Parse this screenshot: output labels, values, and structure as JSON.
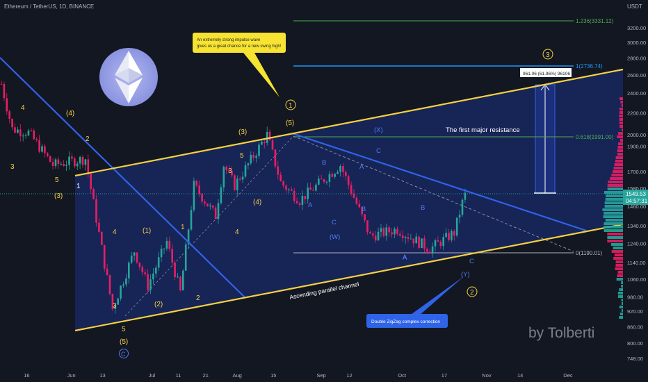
{
  "header": {
    "title": "Ethereum / TetherUS, 1D, BINANCE",
    "currency": "USDT"
  },
  "price_axis": {
    "ticks": [
      "3200.00",
      "3000.00",
      "2800.00",
      "2600.00",
      "2400.00",
      "2200.00",
      "2000.00",
      "1900.00",
      "1700.00",
      "1580.00",
      "1460.00",
      "1340.00",
      "1240.00",
      "1140.00",
      "1060.00",
      "980.00",
      "920.00",
      "860.00",
      "800.00",
      "748.00"
    ],
    "current_price": "1549.53",
    "countdown": "04:57:31"
  },
  "time_axis": {
    "labels": [
      "16",
      "Jun",
      "13",
      "Jul",
      "11",
      "21",
      "Aug",
      "15",
      "Sep",
      "12",
      "Oct",
      "17",
      "Nov",
      "14",
      "Dec"
    ]
  },
  "fib_levels": [
    {
      "label": "1.236(3331.12)",
      "color": "#4caf50"
    },
    {
      "label": "1(2736.74)",
      "color": "#2196f3"
    },
    {
      "label": "0.618(1991.00)",
      "color": "#4caf50"
    },
    {
      "label": "0(1190.01)",
      "color": "#b2b5be"
    }
  ],
  "measure_label": "961.06 (61.96%) 96106",
  "annotations": {
    "callout_top": "An extremely strong impulse wave gives us a great chance for a new swing high!",
    "callout_top_lines": [
      "An extremely strong impulse wave",
      "gives us a great chance for a new swing high!"
    ],
    "resistance": "The first major resistance",
    "channel": "Ascending parallel channel",
    "callout_bottom": "Double ZigZag complex correction"
  },
  "wave_labels": {
    "yellow": [
      "4",
      "3",
      "5",
      "(3)",
      "1",
      "(4)",
      "2",
      "4",
      "(1)",
      "1",
      "3",
      "(2)",
      "2",
      "5",
      "(3)",
      "3",
      "4",
      "(4)",
      "5",
      "(5)",
      "(5)"
    ],
    "circled": [
      "1",
      "3",
      "2",
      "C"
    ],
    "blue": [
      "B",
      "A",
      "C",
      "(W)",
      "A",
      "B",
      "C",
      "A",
      "B",
      "A",
      "C",
      "(Y)",
      "(X)"
    ]
  },
  "watermark": "by Tolberti",
  "colors": {
    "background": "#131722",
    "channel": "#f5d142",
    "trendline": "#2f63e8",
    "bull": "#26a69a",
    "bear": "#e91e63",
    "measure_fill": "#1c2f7a"
  },
  "chart_data": {
    "type": "candlestick",
    "title": "Ethereum / TetherUS, 1D, BINANCE",
    "y_axis": {
      "unit": "USDT",
      "scale": "log",
      "ylim": [
        740,
        3330
      ]
    },
    "x_range": [
      "2022-05-08",
      "2022-12-01"
    ],
    "approx_close_path": [
      {
        "x": "2022-05-08",
        "y": 2500
      },
      {
        "x": "2022-05-12",
        "y": 2050
      },
      {
        "x": "2022-05-18",
        "y": 2020
      },
      {
        "x": "2022-05-27",
        "y": 1750
      },
      {
        "x": "2022-06-08",
        "y": 1800
      },
      {
        "x": "2022-06-18",
        "y": 930
      },
      {
        "x": "2022-06-26",
        "y": 1200
      },
      {
        "x": "2022-07-01",
        "y": 1030
      },
      {
        "x": "2022-07-08",
        "y": 1250
      },
      {
        "x": "2022-07-13",
        "y": 1000
      },
      {
        "x": "2022-07-18",
        "y": 1600
      },
      {
        "x": "2022-07-26",
        "y": 1400
      },
      {
        "x": "2022-07-29",
        "y": 1750
      },
      {
        "x": "2022-08-02",
        "y": 1600
      },
      {
        "x": "2022-08-14",
        "y": 2000
      },
      {
        "x": "2022-08-19",
        "y": 1620
      },
      {
        "x": "2022-08-26",
        "y": 1500
      },
      {
        "x": "2022-09-10",
        "y": 1750
      },
      {
        "x": "2022-09-21",
        "y": 1280
      },
      {
        "x": "2022-10-01",
        "y": 1320
      },
      {
        "x": "2022-10-13",
        "y": 1210
      },
      {
        "x": "2022-10-22",
        "y": 1300
      },
      {
        "x": "2022-10-26",
        "y": 1549.53
      }
    ],
    "last_price": 1549.53
  }
}
